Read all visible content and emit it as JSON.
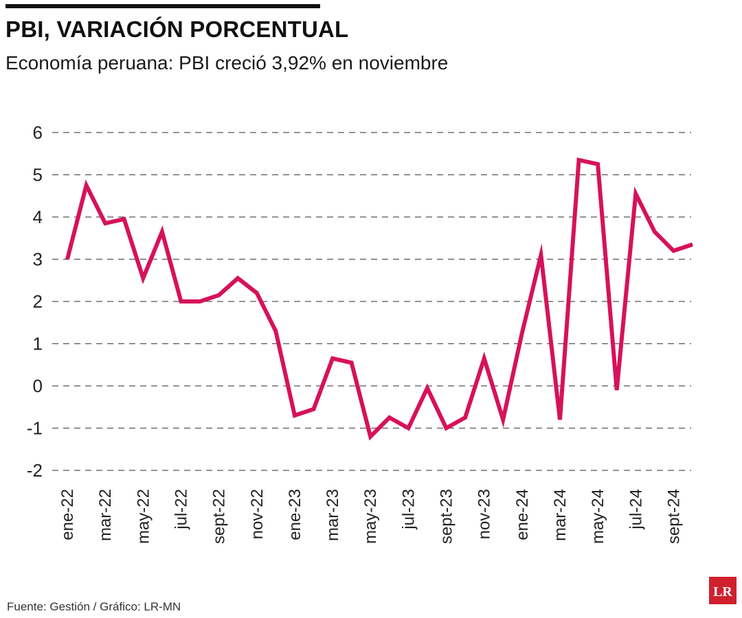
{
  "header": {
    "title": "PBI, VARIACIÓN PORCENTUAL",
    "subtitle": "Economía peruana: PBI creció 3,92% en noviembre"
  },
  "footer": {
    "source": "Fuente: Gestión / Gráfico: LR-MN",
    "logo_text": "LR"
  },
  "colors": {
    "line": "#d6125a",
    "grid": "#555555",
    "logo_bg": "#d0202e"
  },
  "chart_data": {
    "type": "line",
    "title": "PBI, VARIACIÓN PORCENTUAL",
    "xlabel": "",
    "ylabel": "",
    "ylim": [
      -2,
      6
    ],
    "yticks": [
      "-2",
      "-1",
      "0",
      "1",
      "2",
      "3",
      "4",
      "5",
      "6"
    ],
    "grid": true,
    "x": [
      "ene-22",
      "feb-22",
      "mar-22",
      "abr-22",
      "may-22",
      "jun-22",
      "jul-22",
      "ago-22",
      "sept-22",
      "oct-22",
      "nov-22",
      "dic-22",
      "ene-23",
      "feb-23",
      "mar-23",
      "abr-23",
      "may-23",
      "jun-23",
      "jul-23",
      "ago-23",
      "sept-23",
      "oct-23",
      "nov-23",
      "dic-23",
      "ene-24",
      "feb-24",
      "mar-24",
      "abr-24",
      "may-24",
      "jun-24",
      "jul-24",
      "ago-24",
      "sept-24",
      "oct-24"
    ],
    "xtick_labels": [
      "ene-22",
      "mar-22",
      "may-22",
      "jul-22",
      "sept-22",
      "nov-22",
      "ene-23",
      "mar-23",
      "may-23",
      "jul-23",
      "sept-23",
      "nov-23",
      "ene-24",
      "mar-24",
      "may-24",
      "jul-24",
      "sept-24"
    ],
    "series": [
      {
        "name": "PBI variación %",
        "values": [
          3.0,
          4.75,
          3.85,
          3.95,
          2.55,
          3.65,
          2.0,
          2.0,
          2.15,
          2.55,
          2.2,
          1.3,
          -0.7,
          -0.55,
          0.65,
          0.55,
          -1.2,
          -0.75,
          -1.0,
          -0.05,
          -1.0,
          -0.75,
          0.65,
          -0.8,
          1.25,
          3.1,
          -0.8,
          5.35,
          5.25,
          -0.1,
          4.55,
          3.65,
          3.2,
          3.35
        ]
      }
    ]
  }
}
